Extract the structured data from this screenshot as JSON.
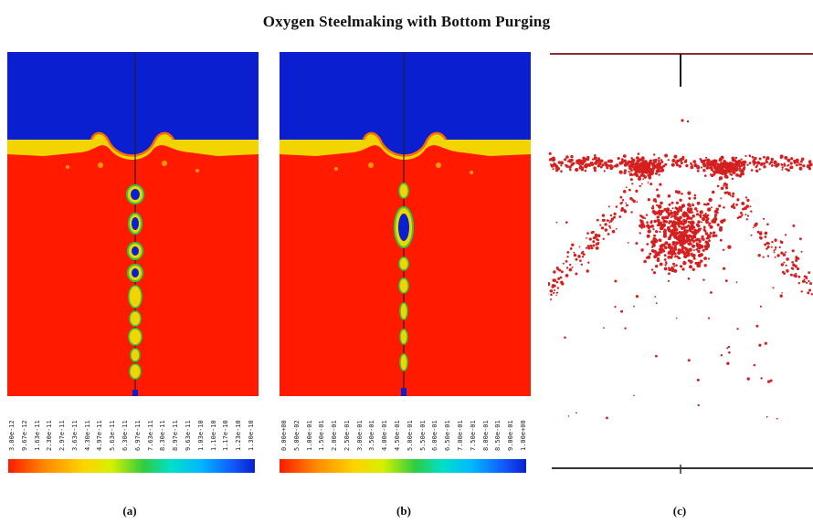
{
  "title": "Oxygen Steelmaking with Bottom Purging",
  "panels": [
    {
      "caption": "(a)",
      "ticks": [
        "3.00e-12",
        "9.67e-12",
        "1.63e-11",
        "2.30e-11",
        "2.97e-11",
        "3.63e-11",
        "4.30e-11",
        "4.97e-11",
        "5.63e-11",
        "6.30e-11",
        "6.97e-11",
        "7.63e-11",
        "8.30e-11",
        "8.97e-11",
        "9.63e-11",
        "1.03e-10",
        "1.10e-10",
        "1.17e-10",
        "1.23e-10",
        "1.30e-10"
      ],
      "colors": {
        "gas": "#0a1fd0",
        "slag": "#f2d400",
        "steel": "#ff1a00"
      }
    },
    {
      "caption": "(b)",
      "ticks": [
        "0.00e+00",
        "5.00e-02",
        "1.00e-01",
        "1.50e-01",
        "2.00e-01",
        "2.50e-01",
        "3.00e-01",
        "3.50e-01",
        "4.00e-01",
        "4.50e-01",
        "5.00e-01",
        "5.50e-01",
        "6.00e-01",
        "6.50e-01",
        "7.00e-01",
        "7.50e-01",
        "8.00e-01",
        "8.50e-01",
        "9.00e-01",
        "1.00e+00"
      ],
      "colors": {
        "gas": "#0a1fd0",
        "slag": "#f2d400",
        "steel": "#ff1a00"
      }
    },
    {
      "caption": "(c)",
      "colors": {
        "particle": "#d42020",
        "frame": "#8a3030"
      }
    }
  ]
}
